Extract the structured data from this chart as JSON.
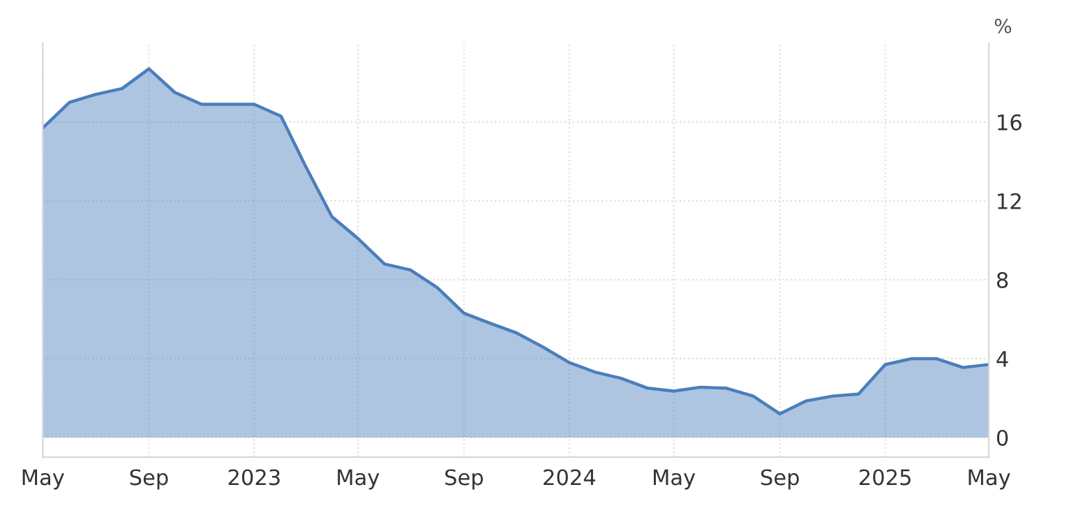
{
  "chart_data": {
    "type": "area",
    "ylabel": "%",
    "x": [
      "2022-05",
      "2022-06",
      "2022-07",
      "2022-08",
      "2022-09",
      "2022-10",
      "2022-11",
      "2022-12",
      "2023-01",
      "2023-02",
      "2023-03",
      "2023-04",
      "2023-05",
      "2023-06",
      "2023-07",
      "2023-08",
      "2023-09",
      "2023-10",
      "2023-11",
      "2023-12",
      "2024-01",
      "2024-02",
      "2024-03",
      "2024-04",
      "2024-05",
      "2024-06",
      "2024-07",
      "2024-08",
      "2024-09",
      "2024-10",
      "2024-11",
      "2024-12",
      "2025-01",
      "2025-02",
      "2025-03",
      "2025-04",
      "2025-05"
    ],
    "series": [
      {
        "color": "#4a7ebb",
        "values": [
          15.7,
          17.0,
          17.4,
          17.7,
          18.7,
          17.5,
          16.9,
          16.9,
          16.9,
          16.3,
          13.8,
          11.2,
          10.1,
          8.8,
          8.5,
          7.6,
          6.3,
          5.8,
          5.3,
          4.6,
          3.8,
          3.3,
          3.0,
          2.5,
          2.35,
          2.55,
          2.5,
          2.1,
          1.2,
          1.85,
          2.1,
          2.2,
          3.7,
          4.0,
          4.0,
          3.55,
          3.7
        ]
      }
    ],
    "xlim": [
      "2022-05",
      "2025-05"
    ],
    "xticks": [
      {
        "value": "2022-05",
        "label": "May"
      },
      {
        "value": "2022-09",
        "label": "Sep"
      },
      {
        "value": "2023-01",
        "label": "2023"
      },
      {
        "value": "2023-05",
        "label": "May"
      },
      {
        "value": "2023-09",
        "label": "Sep"
      },
      {
        "value": "2024-01",
        "label": "2024"
      },
      {
        "value": "2024-05",
        "label": "May"
      },
      {
        "value": "2024-09",
        "label": "Sep"
      },
      {
        "value": "2025-01",
        "label": "2025"
      },
      {
        "value": "2025-05",
        "label": "May"
      }
    ],
    "ylim": [
      -1,
      20
    ],
    "yticks": [
      0,
      4,
      8,
      12,
      16
    ],
    "grid": true
  }
}
